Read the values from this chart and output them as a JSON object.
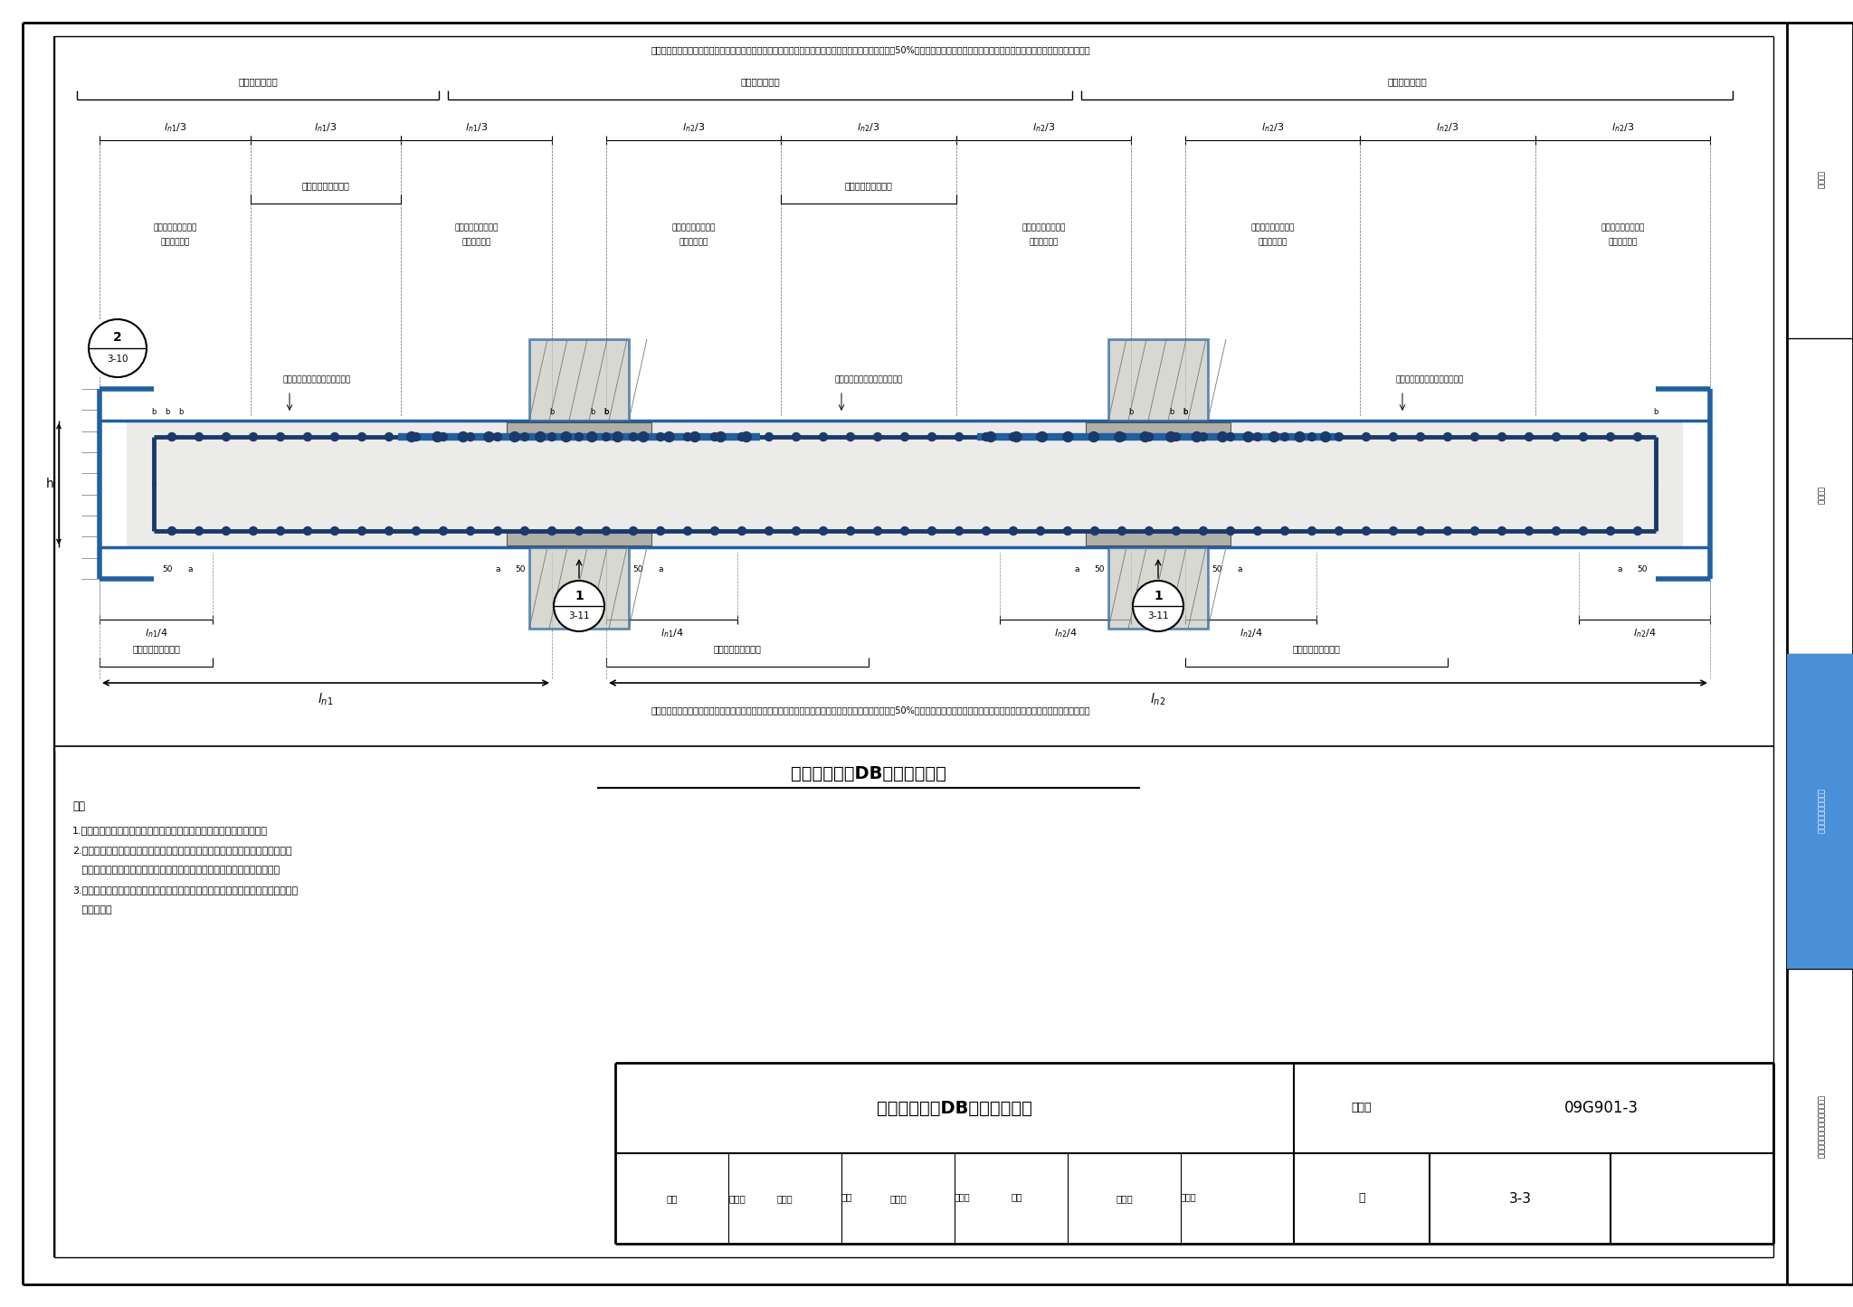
{
  "paper_color": "#ffffff",
  "title_main": "箱形基础顶板DB钢筋排布构造",
  "figure_number": "09G901-3",
  "page": "3-3",
  "top_note": "顶部贯通钢筋，在连接区段内采用搭接、机械连接或对焊连接。同一连接区段内接头面积百分率不应大于50%。当钢筋长度可穿过一连接区到下一连接区并满足连接要求时，宜穿越设置",
  "bottom_note": "底部贯通钢筋，在连接区段内采用搭接、机械连接或对焊连接。同一连接区段内接头面积百分率不应大于50%。当钢筋长度可穿过一连接区到下一连接区并满足连接要求时，宜穿越设置",
  "note_title": "注：",
  "note_lines": [
    "1.底部与顶部贯通纵筋在连接区的连接方式，应满足本图集的相应要求。",
    "2.当两毗邻的顶部贯通纵筋配置不同时，应将配置较大一跨的底部贯通纵筋越过其",
    "   标注的跨数终点或起点，延伸至配置较小的毗邻跨的跨中连接区进行连接。",
    "3.箱形基础顶板同一层面的交叉钢筋何筋在上由设计具体说明。当设计无说明时，由",
    "   施工确定。"
  ],
  "sidebar_sections": [
    {
      "label": "一般构造",
      "highlight": false
    },
    {
      "label": "筏形基础",
      "highlight": false
    },
    {
      "label": "箱形基础和地下室结构",
      "highlight": true
    },
    {
      "label": "箱形基础、筏形基础、桩基承台",
      "highlight": false
    }
  ],
  "sidebar_blue": "#4a90d9",
  "steel_blue": "#2060a0",
  "steel_dark": "#1a3a6b",
  "concrete_gray": "#c8c8c0"
}
